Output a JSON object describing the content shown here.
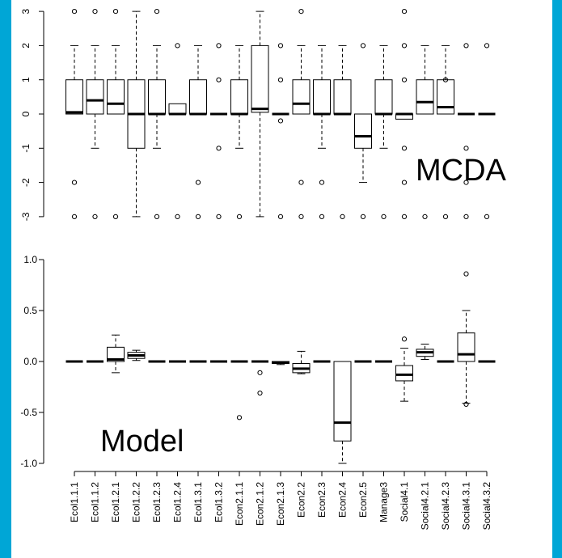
{
  "chart_data": [
    {
      "type": "boxplot",
      "panel_label": "MCDA",
      "ylim": [
        -3,
        3
      ],
      "yticks": [
        "3",
        "2",
        "1",
        "0",
        "-1",
        "-2",
        "-3"
      ],
      "categories": [
        "Ecol1.1.1",
        "Ecol1.1.2",
        "Ecol1.2.1",
        "Ecol1.2.2",
        "Ecol1.2.3",
        "Ecol1.2.4",
        "Ecol1.3.1",
        "Ecol1.3.2",
        "Econ2.1.1",
        "Econ2.1.2",
        "Econ2.1.3",
        "Econ2.2",
        "Econ2.3",
        "Econ2.4",
        "Econ2.5",
        "Manage3",
        "Social4.1",
        "Social4.2.1",
        "Social4.2.3",
        "Social4.3.1",
        "Social4.3.2"
      ],
      "boxes": [
        {
          "wlo": 0,
          "q1": 0,
          "med": 0.05,
          "q3": 1,
          "whi": 2,
          "out": [
            3,
            -2,
            -3
          ]
        },
        {
          "wlo": -1,
          "q1": 0,
          "med": 0.4,
          "q3": 1,
          "whi": 2,
          "out": [
            3,
            -3
          ]
        },
        {
          "wlo": 0,
          "q1": 0,
          "med": 0.3,
          "q3": 1,
          "whi": 2,
          "out": [
            3,
            -3
          ]
        },
        {
          "wlo": -3,
          "q1": -1,
          "med": 0,
          "q3": 1,
          "whi": 3,
          "out": []
        },
        {
          "wlo": -1,
          "q1": 0,
          "med": 0,
          "q3": 1,
          "whi": 2,
          "out": [
            3,
            -3
          ]
        },
        {
          "wlo": 0,
          "q1": 0,
          "med": 0,
          "q3": 0.3,
          "whi": 0.3,
          "out": [
            2,
            -3
          ]
        },
        {
          "wlo": 0,
          "q1": 0,
          "med": 0,
          "q3": 1,
          "whi": 2,
          "out": [
            -2,
            -3
          ]
        },
        {
          "wlo": 0,
          "q1": 0,
          "med": 0,
          "q3": 0,
          "whi": 0,
          "out": [
            2,
            1,
            -1,
            -3
          ]
        },
        {
          "wlo": -1,
          "q1": 0,
          "med": 0,
          "q3": 1,
          "whi": 2,
          "out": [
            -3
          ]
        },
        {
          "wlo": -3,
          "q1": 0.05,
          "med": 0.15,
          "q3": 2,
          "whi": 3,
          "out": []
        },
        {
          "wlo": 0,
          "q1": 0,
          "med": 0,
          "q3": 0,
          "whi": 0,
          "out": [
            2,
            1,
            -0.2,
            -3
          ]
        },
        {
          "wlo": 0,
          "q1": 0,
          "med": 0.3,
          "q3": 1,
          "whi": 2,
          "out": [
            3,
            -2,
            -3
          ]
        },
        {
          "wlo": -1,
          "q1": 0,
          "med": 0,
          "q3": 1,
          "whi": 2,
          "out": [
            -2,
            -3
          ]
        },
        {
          "wlo": 0,
          "q1": 0,
          "med": 0,
          "q3": 1,
          "whi": 2,
          "out": [
            -3
          ]
        },
        {
          "wlo": -2,
          "q1": -1,
          "med": -0.65,
          "q3": 0,
          "whi": 0,
          "out": [
            2,
            -3
          ]
        },
        {
          "wlo": -1,
          "q1": 0,
          "med": 0,
          "q3": 1,
          "whi": 2,
          "out": [
            -3
          ]
        },
        {
          "wlo": 0,
          "q1": -0.15,
          "med": 0,
          "q3": 0,
          "whi": 0,
          "out": [
            3,
            2,
            1,
            -1,
            -2,
            -3
          ]
        },
        {
          "wlo": 0,
          "q1": 0,
          "med": 0.35,
          "q3": 1,
          "whi": 2,
          "out": [
            -3
          ]
        },
        {
          "wlo": 0,
          "q1": 0,
          "med": 0.2,
          "q3": 1,
          "whi": 2,
          "out": [
            1,
            -3
          ]
        },
        {
          "wlo": 0,
          "q1": 0,
          "med": 0,
          "q3": 0,
          "whi": 0,
          "out": [
            2,
            -1,
            -2,
            -3
          ]
        },
        {
          "wlo": 0,
          "q1": 0,
          "med": 0,
          "q3": 0,
          "whi": 0,
          "out": [
            2,
            -3
          ]
        }
      ]
    },
    {
      "type": "boxplot",
      "panel_label": "Model",
      "ylim": [
        -1.0,
        1.0
      ],
      "yticks": [
        "1.0",
        "0.5",
        "0.0",
        "-0.5",
        "-1.0"
      ],
      "categories": [
        "Ecol1.1.1",
        "Ecol1.1.2",
        "Ecol1.2.1",
        "Ecol1.2.2",
        "Ecol1.2.3",
        "Ecol1.2.4",
        "Ecol1.3.1",
        "Ecol1.3.2",
        "Econ2.1.1",
        "Econ2.1.2",
        "Econ2.1.3",
        "Econ2.2",
        "Econ2.3",
        "Econ2.4",
        "Econ2.5",
        "Manage3",
        "Social4.1",
        "Social4.2.1",
        "Social4.2.3",
        "Social4.3.1",
        "Social4.3.2"
      ],
      "boxes": [
        {
          "wlo": 0,
          "q1": 0,
          "med": 0,
          "q3": 0,
          "whi": 0,
          "out": []
        },
        {
          "wlo": 0,
          "q1": 0,
          "med": 0,
          "q3": 0,
          "whi": 0,
          "out": []
        },
        {
          "wlo": -0.11,
          "q1": 0,
          "med": 0.02,
          "q3": 0.14,
          "whi": 0.26,
          "out": []
        },
        {
          "wlo": 0.01,
          "q1": 0.03,
          "med": 0.06,
          "q3": 0.09,
          "whi": 0.11,
          "out": []
        },
        {
          "wlo": 0,
          "q1": 0,
          "med": 0,
          "q3": 0,
          "whi": 0,
          "out": []
        },
        {
          "wlo": 0,
          "q1": 0,
          "med": 0,
          "q3": 0,
          "whi": 0,
          "out": []
        },
        {
          "wlo": 0,
          "q1": 0,
          "med": 0,
          "q3": 0,
          "whi": 0,
          "out": []
        },
        {
          "wlo": 0,
          "q1": 0,
          "med": 0,
          "q3": 0,
          "whi": 0,
          "out": []
        },
        {
          "wlo": 0,
          "q1": 0,
          "med": 0,
          "q3": 0,
          "whi": 0,
          "out": [
            -0.55
          ]
        },
        {
          "wlo": 0,
          "q1": 0,
          "med": 0,
          "q3": 0,
          "whi": 0,
          "out": [
            -0.11,
            -0.31
          ]
        },
        {
          "wlo": -0.03,
          "q1": -0.02,
          "med": -0.01,
          "q3": 0,
          "whi": 0,
          "out": []
        },
        {
          "wlo": -0.12,
          "q1": -0.11,
          "med": -0.07,
          "q3": -0.02,
          "whi": 0.1,
          "out": []
        },
        {
          "wlo": 0,
          "q1": 0,
          "med": 0,
          "q3": 0,
          "whi": 0,
          "out": []
        },
        {
          "wlo": -1.0,
          "q1": -0.78,
          "med": -0.6,
          "q3": 0,
          "whi": 0,
          "out": []
        },
        {
          "wlo": 0,
          "q1": 0,
          "med": 0,
          "q3": 0,
          "whi": 0,
          "out": []
        },
        {
          "wlo": 0,
          "q1": 0,
          "med": 0,
          "q3": 0,
          "whi": 0,
          "out": []
        },
        {
          "wlo": -0.39,
          "q1": -0.19,
          "med": -0.13,
          "q3": -0.04,
          "whi": 0.13,
          "out": [
            0.22
          ]
        },
        {
          "wlo": 0.02,
          "q1": 0.05,
          "med": 0.09,
          "q3": 0.12,
          "whi": 0.17,
          "out": []
        },
        {
          "wlo": 0,
          "q1": 0,
          "med": 0,
          "q3": 0,
          "whi": 0,
          "out": []
        },
        {
          "wlo": -0.41,
          "q1": 0,
          "med": 0.07,
          "q3": 0.28,
          "whi": 0.5,
          "out": [
            0.86,
            -0.42
          ]
        },
        {
          "wlo": 0,
          "q1": 0,
          "med": 0,
          "q3": 0,
          "whi": 0,
          "out": []
        }
      ]
    }
  ]
}
